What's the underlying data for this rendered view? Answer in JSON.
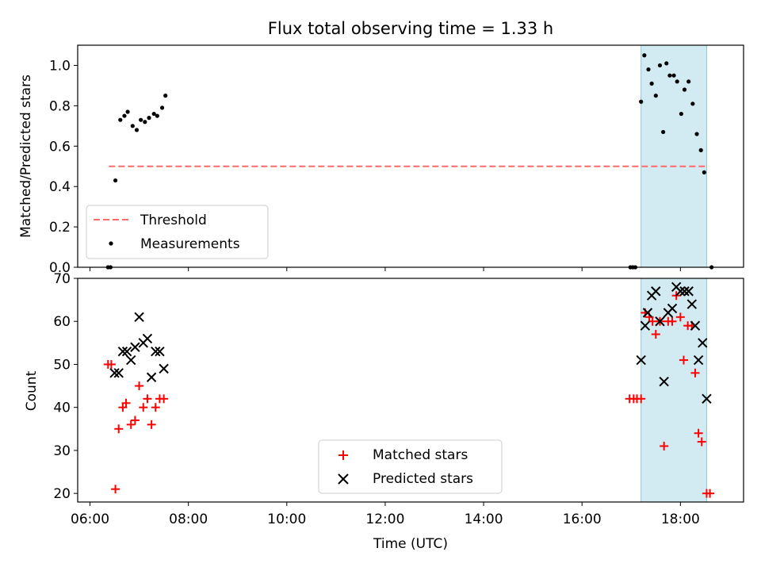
{
  "chart_data": [
    {
      "type": "scatter",
      "title": "Flux total observing time = 1.33 h",
      "xlabel": "",
      "ylabel": "Matched/Predicted stars",
      "xlim": [
        "05:45",
        "19:17"
      ],
      "ylim": [
        0,
        1.1
      ],
      "yticks": [
        0.0,
        0.2,
        0.4,
        0.6,
        0.8,
        1.0
      ],
      "ytick_labels": [
        "0.0",
        "0.2",
        "0.4",
        "0.6",
        "0.8",
        "1.0"
      ],
      "xticks": [
        "06:00",
        "08:00",
        "10:00",
        "12:00",
        "14:00",
        "16:00",
        "18:00"
      ],
      "highlight_span": {
        "start": "17:12",
        "end": "18:32",
        "color": "#add8e6"
      },
      "threshold": {
        "name": "Threshold",
        "value": 0.5,
        "start": "06:23",
        "end": "18:33",
        "color": "#ff6b6b",
        "style": "dashed"
      },
      "series": [
        {
          "name": "Measurements",
          "marker": "dot",
          "color": "#000000",
          "points": [
            [
              "06:22",
              0.0
            ],
            [
              "06:25",
              0.0
            ],
            [
              "06:31",
              0.43
            ],
            [
              "06:37",
              0.73
            ],
            [
              "06:42",
              0.75
            ],
            [
              "06:46",
              0.77
            ],
            [
              "06:52",
              0.7
            ],
            [
              "06:57",
              0.68
            ],
            [
              "07:02",
              0.73
            ],
            [
              "07:07",
              0.72
            ],
            [
              "07:12",
              0.74
            ],
            [
              "07:18",
              0.76
            ],
            [
              "07:22",
              0.75
            ],
            [
              "07:28",
              0.79
            ],
            [
              "07:32",
              0.85
            ],
            [
              "16:59",
              0.0
            ],
            [
              "17:02",
              0.0
            ],
            [
              "17:05",
              0.0
            ],
            [
              "17:12",
              0.82
            ],
            [
              "17:16",
              1.05
            ],
            [
              "17:21",
              0.98
            ],
            [
              "17:25",
              0.91
            ],
            [
              "17:30",
              0.85
            ],
            [
              "17:35",
              1.0
            ],
            [
              "17:39",
              0.67
            ],
            [
              "17:43",
              1.01
            ],
            [
              "17:47",
              0.95
            ],
            [
              "17:52",
              0.95
            ],
            [
              "17:56",
              0.92
            ],
            [
              "18:01",
              0.76
            ],
            [
              "18:05",
              0.88
            ],
            [
              "18:10",
              0.92
            ],
            [
              "18:15",
              0.81
            ],
            [
              "18:20",
              0.66
            ],
            [
              "18:25",
              0.58
            ],
            [
              "18:29",
              0.47
            ],
            [
              "18:38",
              0.0
            ]
          ]
        }
      ],
      "legend": {
        "position": "lower-left",
        "entries": [
          "Threshold",
          "Measurements"
        ]
      }
    },
    {
      "type": "scatter",
      "title": "",
      "xlabel": "Time (UTC)",
      "ylabel": "Count",
      "xlim": [
        "05:45",
        "19:17"
      ],
      "ylim": [
        18,
        70
      ],
      "yticks": [
        20,
        30,
        40,
        50,
        60,
        70
      ],
      "ytick_labels": [
        "20",
        "30",
        "40",
        "50",
        "60",
        "70"
      ],
      "xticks": [
        "06:00",
        "08:00",
        "10:00",
        "12:00",
        "14:00",
        "16:00",
        "18:00"
      ],
      "xtick_labels": [
        "06:00",
        "08:00",
        "10:00",
        "12:00",
        "14:00",
        "16:00",
        "18:00"
      ],
      "highlight_span": {
        "start": "17:12",
        "end": "18:32",
        "color": "#add8e6"
      },
      "series": [
        {
          "name": "Matched stars",
          "marker": "plus",
          "color": "#ff0000",
          "points": [
            [
              "06:22",
              50
            ],
            [
              "06:26",
              50
            ],
            [
              "06:31",
              21
            ],
            [
              "06:35",
              35
            ],
            [
              "06:40",
              40
            ],
            [
              "06:44",
              41
            ],
            [
              "06:50",
              36
            ],
            [
              "06:55",
              37
            ],
            [
              "07:00",
              45
            ],
            [
              "07:05",
              40
            ],
            [
              "07:10",
              42
            ],
            [
              "07:15",
              36
            ],
            [
              "07:20",
              40
            ],
            [
              "07:25",
              42
            ],
            [
              "07:30",
              42
            ],
            [
              "16:58",
              42
            ],
            [
              "17:03",
              42
            ],
            [
              "17:07",
              42
            ],
            [
              "17:12",
              42
            ],
            [
              "17:17",
              62
            ],
            [
              "17:22",
              61
            ],
            [
              "17:26",
              60
            ],
            [
              "17:30",
              57
            ],
            [
              "17:35",
              60
            ],
            [
              "17:40",
              31
            ],
            [
              "17:45",
              60
            ],
            [
              "17:50",
              60
            ],
            [
              "17:55",
              66
            ],
            [
              "18:00",
              61
            ],
            [
              "18:04",
              51
            ],
            [
              "18:09",
              59
            ],
            [
              "18:14",
              59
            ],
            [
              "18:18",
              48
            ],
            [
              "18:22",
              34
            ],
            [
              "18:26",
              32
            ],
            [
              "18:32",
              20
            ],
            [
              "18:36",
              20
            ]
          ]
        },
        {
          "name": "Predicted stars",
          "marker": "x",
          "color": "#000000",
          "points": [
            [
              "06:30",
              48
            ],
            [
              "06:35",
              48
            ],
            [
              "06:40",
              53
            ],
            [
              "06:45",
              53
            ],
            [
              "06:50",
              51
            ],
            [
              "06:55",
              54
            ],
            [
              "07:00",
              61
            ],
            [
              "07:05",
              55
            ],
            [
              "07:10",
              56
            ],
            [
              "07:15",
              47
            ],
            [
              "07:20",
              53
            ],
            [
              "07:25",
              53
            ],
            [
              "07:30",
              49
            ],
            [
              "17:12",
              51
            ],
            [
              "17:17",
              59
            ],
            [
              "17:20",
              62
            ],
            [
              "17:25",
              66
            ],
            [
              "17:30",
              67
            ],
            [
              "17:35",
              60
            ],
            [
              "17:40",
              46
            ],
            [
              "17:45",
              62
            ],
            [
              "17:50",
              63
            ],
            [
              "17:55",
              68
            ],
            [
              "18:00",
              67
            ],
            [
              "18:05",
              67
            ],
            [
              "18:10",
              67
            ],
            [
              "18:14",
              64
            ],
            [
              "18:18",
              59
            ],
            [
              "18:22",
              51
            ],
            [
              "18:27",
              55
            ],
            [
              "18:32",
              42
            ]
          ]
        }
      ],
      "legend": {
        "position": "lower-center",
        "entries": [
          "Matched stars",
          "Predicted stars"
        ]
      }
    }
  ]
}
